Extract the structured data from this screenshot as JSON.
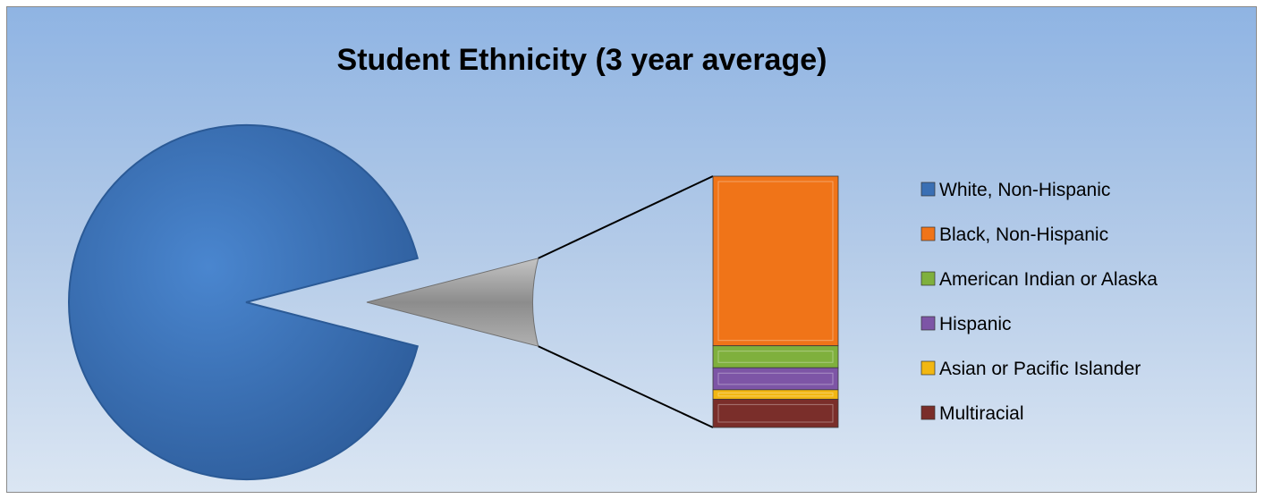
{
  "chart_data": {
    "type": "pie",
    "subtype": "bar-of-pie",
    "title": "Student Ethnicity (3 year average)",
    "categories": [
      "White, Non-Hispanic",
      "Black, Non-Hispanic",
      "American Indian or Alaska",
      "Hispanic",
      "Asian or Pacific Islander",
      "Multiracial"
    ],
    "values": [
      92.0,
      5.4,
      0.7,
      0.7,
      0.3,
      0.9
    ],
    "colors": [
      "#3a6fb4",
      "#f07418",
      "#7fb03d",
      "#7d55a6",
      "#f2b712",
      "#7a2e2a"
    ],
    "other_slice_color": "#9a9a9a",
    "legend_position": "right",
    "grid": false
  }
}
